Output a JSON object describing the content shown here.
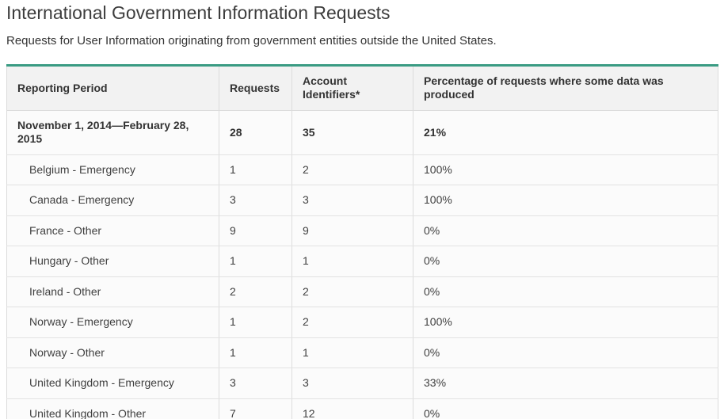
{
  "theme": {
    "accent_color": "#3a9b83",
    "header_bg": "#f2f2f2",
    "border_color": "#dcdcdc"
  },
  "page": {
    "title": "International Government Information Requests",
    "subtitle": "Requests for User Information originating from government entities outside the United States."
  },
  "table": {
    "columns": [
      "Reporting Period",
      "Requests",
      "Account Identifiers*",
      "Percentage of requests where some data was produced"
    ],
    "summary_row": {
      "period": "November 1, 2014—February 28, 2015",
      "requests": "28",
      "account_identifiers": "35",
      "percentage": "21%"
    },
    "rows": [
      {
        "label": "Belgium - Emergency",
        "requests": "1",
        "account_identifiers": "2",
        "percentage": "100%"
      },
      {
        "label": "Canada - Emergency",
        "requests": "3",
        "account_identifiers": "3",
        "percentage": "100%"
      },
      {
        "label": "France - Other",
        "requests": "9",
        "account_identifiers": "9",
        "percentage": "0%"
      },
      {
        "label": "Hungary - Other",
        "requests": "1",
        "account_identifiers": "1",
        "percentage": "0%"
      },
      {
        "label": "Ireland - Other",
        "requests": "2",
        "account_identifiers": "2",
        "percentage": "0%"
      },
      {
        "label": "Norway - Emergency",
        "requests": "1",
        "account_identifiers": "2",
        "percentage": "100%"
      },
      {
        "label": "Norway - Other",
        "requests": "1",
        "account_identifiers": "1",
        "percentage": "0%"
      },
      {
        "label": "United Kingdom - Emergency",
        "requests": "3",
        "account_identifiers": "3",
        "percentage": "33%"
      },
      {
        "label": "United Kingdom - Other",
        "requests": "7",
        "account_identifiers": "12",
        "percentage": "0%"
      }
    ]
  }
}
